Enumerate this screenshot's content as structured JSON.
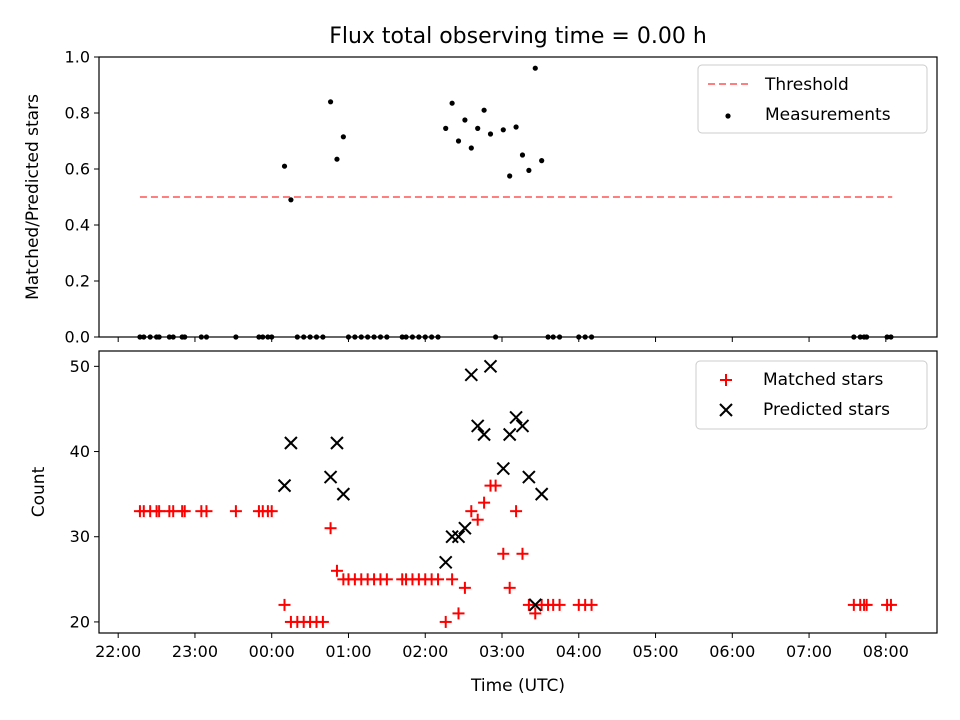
{
  "chart_data": [
    {
      "type": "scatter",
      "title": "Flux total observing time = 0.00 h",
      "xlabel": "",
      "ylabel": "Matched/Predicted stars",
      "xlim": [
        "21:45",
        "08:40"
      ],
      "ylim": [
        0,
        1.0
      ],
      "yticks": [
        "0.0",
        "0.2",
        "0.4",
        "0.6",
        "0.8",
        "1.0"
      ],
      "legend_position": "top-right",
      "threshold": {
        "name": "Threshold",
        "value": 0.5,
        "x_range": [
          "22:17",
          "08:05"
        ],
        "color": "#ff7f7f",
        "style": "dashed"
      },
      "series": [
        {
          "name": "Measurements",
          "color": "#000000",
          "marker": "dot",
          "points": [
            [
              "22:17",
              0.0
            ],
            [
              "22:20",
              0.0
            ],
            [
              "22:25",
              0.0
            ],
            [
              "22:30",
              0.0
            ],
            [
              "22:32",
              0.0
            ],
            [
              "22:40",
              0.0
            ],
            [
              "22:43",
              0.0
            ],
            [
              "22:50",
              0.0
            ],
            [
              "22:52",
              0.0
            ],
            [
              "23:05",
              0.0
            ],
            [
              "23:09",
              0.0
            ],
            [
              "23:32",
              0.0
            ],
            [
              "23:50",
              0.0
            ],
            [
              "23:53",
              0.0
            ],
            [
              "23:57",
              0.0
            ],
            [
              "00:00",
              0.0
            ],
            [
              "00:10",
              0.61
            ],
            [
              "00:15",
              0.49
            ],
            [
              "00:20",
              0.0
            ],
            [
              "00:25",
              0.0
            ],
            [
              "00:30",
              0.0
            ],
            [
              "00:35",
              0.0
            ],
            [
              "00:40",
              0.0
            ],
            [
              "00:46",
              0.84
            ],
            [
              "00:51",
              0.635
            ],
            [
              "00:56",
              0.715
            ],
            [
              "01:00",
              0.0
            ],
            [
              "01:05",
              0.0
            ],
            [
              "01:10",
              0.0
            ],
            [
              "01:15",
              0.0
            ],
            [
              "01:20",
              0.0
            ],
            [
              "01:25",
              0.0
            ],
            [
              "01:30",
              0.0
            ],
            [
              "01:42",
              0.0
            ],
            [
              "01:45",
              0.0
            ],
            [
              "01:50",
              0.0
            ],
            [
              "01:55",
              0.0
            ],
            [
              "02:00",
              0.0
            ],
            [
              "02:05",
              0.0
            ],
            [
              "02:10",
              0.0
            ],
            [
              "02:16",
              0.745
            ],
            [
              "02:21",
              0.835
            ],
            [
              "02:26",
              0.7
            ],
            [
              "02:31",
              0.775
            ],
            [
              "02:36",
              0.675
            ],
            [
              "02:41",
              0.745
            ],
            [
              "02:46",
              0.81
            ],
            [
              "02:51",
              0.725
            ],
            [
              "02:55",
              0.0
            ],
            [
              "03:01",
              0.74
            ],
            [
              "03:06",
              0.575
            ],
            [
              "03:11",
              0.75
            ],
            [
              "03:16",
              0.65
            ],
            [
              "03:21",
              0.595
            ],
            [
              "03:26",
              0.96
            ],
            [
              "03:31",
              0.63
            ],
            [
              "03:36",
              0.0
            ],
            [
              "03:40",
              0.0
            ],
            [
              "03:45",
              0.0
            ],
            [
              "04:00",
              0.0
            ],
            [
              "04:05",
              0.0
            ],
            [
              "04:10",
              0.0
            ],
            [
              "07:35",
              0.0
            ],
            [
              "07:40",
              0.0
            ],
            [
              "07:43",
              0.0
            ],
            [
              "07:45",
              0.0
            ],
            [
              "08:01",
              0.0
            ],
            [
              "08:04",
              0.0
            ]
          ]
        }
      ]
    },
    {
      "type": "scatter",
      "title": "",
      "xlabel": "Time (UTC)",
      "ylabel": "Count",
      "xlim": [
        "21:45",
        "08:40"
      ],
      "ylim": [
        18.7,
        51.8
      ],
      "yticks": [
        "20",
        "30",
        "40",
        "50"
      ],
      "xticks": [
        "22:00",
        "23:00",
        "00:00",
        "01:00",
        "02:00",
        "03:00",
        "04:00",
        "05:00",
        "06:00",
        "07:00",
        "08:00"
      ],
      "legend_position": "top-right",
      "series": [
        {
          "name": "Matched stars",
          "color": "#ff0000",
          "marker": "plus",
          "points": [
            [
              "22:17",
              33
            ],
            [
              "22:20",
              33
            ],
            [
              "22:25",
              33
            ],
            [
              "22:30",
              33
            ],
            [
              "22:32",
              33
            ],
            [
              "22:40",
              33
            ],
            [
              "22:43",
              33
            ],
            [
              "22:50",
              33
            ],
            [
              "22:52",
              33
            ],
            [
              "23:05",
              33
            ],
            [
              "23:09",
              33
            ],
            [
              "23:32",
              33
            ],
            [
              "23:50",
              33
            ],
            [
              "23:53",
              33
            ],
            [
              "23:57",
              33
            ],
            [
              "00:00",
              33
            ],
            [
              "00:10",
              22
            ],
            [
              "00:15",
              20
            ],
            [
              "00:20",
              20
            ],
            [
              "00:25",
              20
            ],
            [
              "00:30",
              20
            ],
            [
              "00:35",
              20
            ],
            [
              "00:40",
              20
            ],
            [
              "00:46",
              31
            ],
            [
              "00:51",
              26
            ],
            [
              "00:56",
              25
            ],
            [
              "01:00",
              25
            ],
            [
              "01:05",
              25
            ],
            [
              "01:10",
              25
            ],
            [
              "01:15",
              25
            ],
            [
              "01:20",
              25
            ],
            [
              "01:25",
              25
            ],
            [
              "01:30",
              25
            ],
            [
              "01:42",
              25
            ],
            [
              "01:45",
              25
            ],
            [
              "01:50",
              25
            ],
            [
              "01:55",
              25
            ],
            [
              "02:00",
              25
            ],
            [
              "02:05",
              25
            ],
            [
              "02:10",
              25
            ],
            [
              "02:16",
              20
            ],
            [
              "02:21",
              25
            ],
            [
              "02:26",
              21
            ],
            [
              "02:31",
              24
            ],
            [
              "02:36",
              33
            ],
            [
              "02:41",
              32
            ],
            [
              "02:46",
              34
            ],
            [
              "02:51",
              36
            ],
            [
              "02:55",
              36
            ],
            [
              "03:01",
              28
            ],
            [
              "03:06",
              24
            ],
            [
              "03:11",
              33
            ],
            [
              "03:16",
              28
            ],
            [
              "03:21",
              22
            ],
            [
              "03:26",
              21
            ],
            [
              "03:31",
              22
            ],
            [
              "03:36",
              22
            ],
            [
              "03:40",
              22
            ],
            [
              "03:45",
              22
            ],
            [
              "04:00",
              22
            ],
            [
              "04:05",
              22
            ],
            [
              "04:10",
              22
            ],
            [
              "07:35",
              22
            ],
            [
              "07:40",
              22
            ],
            [
              "07:43",
              22
            ],
            [
              "07:45",
              22
            ],
            [
              "08:01",
              22
            ],
            [
              "08:04",
              22
            ]
          ]
        },
        {
          "name": "Predicted stars",
          "color": "#000000",
          "marker": "x",
          "points": [
            [
              "00:10",
              36
            ],
            [
              "00:15",
              41
            ],
            [
              "00:46",
              37
            ],
            [
              "00:51",
              41
            ],
            [
              "00:56",
              35
            ],
            [
              "02:16",
              27
            ],
            [
              "02:21",
              30
            ],
            [
              "02:26",
              30
            ],
            [
              "02:31",
              31
            ],
            [
              "02:36",
              49
            ],
            [
              "02:41",
              43
            ],
            [
              "02:46",
              42
            ],
            [
              "02:51",
              50
            ],
            [
              "03:01",
              38
            ],
            [
              "03:06",
              42
            ],
            [
              "03:11",
              44
            ],
            [
              "03:16",
              43
            ],
            [
              "03:21",
              37
            ],
            [
              "03:26",
              22
            ],
            [
              "03:31",
              35
            ]
          ]
        }
      ]
    }
  ]
}
